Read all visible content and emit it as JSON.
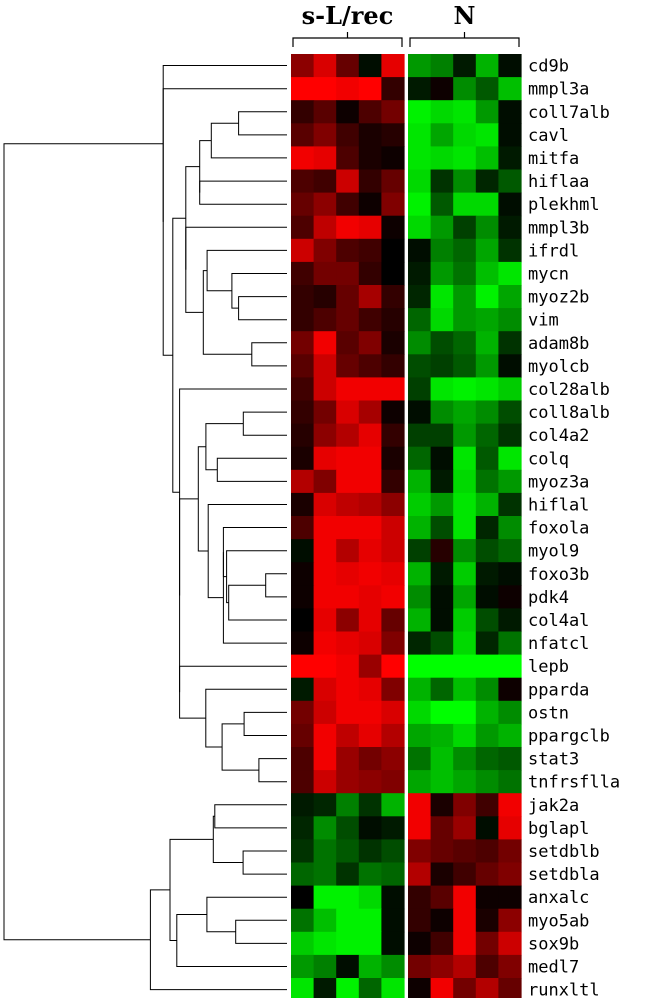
{
  "chart_data": {
    "type": "heatmap",
    "title": "",
    "groups": [
      {
        "label": "s-L/rec",
        "columns": 5
      },
      {
        "label": "N",
        "columns": 5
      }
    ],
    "rows": [
      "cd9b",
      "mmpl3a",
      "col17a1b",
      "cav1",
      "mitfa",
      "hif1aa",
      "plekhm1",
      "mmpl3b",
      "ifrd1",
      "mycn",
      "myoz2b",
      "vim",
      "adam8b",
      "myo1cb",
      "col28a1b",
      "col18a1b",
      "col4a2",
      "c1q",
      "myoz3a",
      "hif1a1",
      "foxo1a",
      "myo19",
      "foxo3b",
      "pdk4",
      "col4a1",
      "nfatc1",
      "lepb",
      "pparda",
      "ostn",
      "ppargc1b",
      "stat3",
      "tnfrsf11a",
      "jak2a",
      "bglap1",
      "setdb1b",
      "setdb1a",
      "anxa1c",
      "myo5ab",
      "sox9b",
      "med17",
      "runx1t1"
    ],
    "row_labels_display": [
      "cd9b",
      "mmpl3a",
      "coll7alb",
      "cavl",
      "mitfa",
      "hiflaa",
      "plekhml",
      "mmpl3b",
      "ifrdl",
      "mycn",
      "myoz2b",
      "vim",
      "adam8b",
      "myolcb",
      "col28alb",
      "coll8alb",
      "col4a2",
      "colq",
      "myoz3a",
      "hiflal",
      "foxola",
      "myol9",
      "foxo3b",
      "pdk4",
      "col4al",
      "nfatcl",
      "lepb",
      "pparda",
      "ostn",
      "ppargclb",
      "stat3",
      "tnfrsflla",
      "jak2a",
      "bglapl",
      "setdblb",
      "setdbla",
      "anxalc",
      "myo5ab",
      "sox9b",
      "medl7",
      "runxltl"
    ],
    "values": [
      [
        0.55,
        0.85,
        0.4,
        -0.05,
        0.9,
        -0.6,
        -0.5,
        -0.1,
        -0.7,
        -0.05
      ],
      [
        1.0,
        1.0,
        0.95,
        1.0,
        0.2,
        -0.1,
        0.05,
        -0.55,
        -0.35,
        -0.75
      ],
      [
        0.2,
        0.35,
        0.05,
        0.3,
        0.45,
        -0.95,
        -0.85,
        -0.9,
        -0.6,
        -0.05
      ],
      [
        0.35,
        0.5,
        0.25,
        0.1,
        0.15,
        -0.9,
        -0.65,
        -0.85,
        -0.9,
        -0.05
      ],
      [
        0.95,
        0.9,
        0.3,
        0.1,
        0.05,
        -0.9,
        -0.85,
        -0.9,
        -0.75,
        -0.1
      ],
      [
        0.3,
        0.25,
        0.8,
        0.2,
        0.4,
        -0.85,
        -0.2,
        -0.55,
        -0.15,
        -0.35
      ],
      [
        0.4,
        0.55,
        0.25,
        0.05,
        0.5,
        -0.95,
        -0.35,
        -0.85,
        -0.85,
        -0.05
      ],
      [
        0.3,
        0.75,
        0.95,
        0.9,
        0.05,
        -0.85,
        -0.6,
        -0.25,
        -0.55,
        -0.1
      ],
      [
        0.8,
        0.5,
        0.3,
        0.25,
        0.0,
        -0.05,
        -0.5,
        -0.4,
        -0.65,
        -0.2
      ],
      [
        0.25,
        0.45,
        0.45,
        0.2,
        0.0,
        -0.1,
        -0.6,
        -0.45,
        -0.75,
        -0.9
      ],
      [
        0.2,
        0.15,
        0.4,
        0.65,
        0.2,
        -0.15,
        -0.9,
        -0.6,
        -0.95,
        -0.65
      ],
      [
        0.2,
        0.3,
        0.4,
        0.25,
        0.15,
        -0.4,
        -0.85,
        -0.6,
        -0.65,
        -0.55
      ],
      [
        0.45,
        0.95,
        0.35,
        0.5,
        0.1,
        -0.55,
        -0.3,
        -0.4,
        -0.7,
        -0.2
      ],
      [
        0.35,
        0.8,
        0.4,
        0.3,
        0.2,
        -0.3,
        -0.25,
        -0.35,
        -0.6,
        -0.05
      ],
      [
        0.25,
        0.8,
        0.95,
        0.95,
        0.95,
        -0.25,
        -0.9,
        -0.95,
        -0.9,
        -0.8
      ],
      [
        0.2,
        0.45,
        0.85,
        0.65,
        0.05,
        -0.05,
        -0.55,
        -0.65,
        -0.55,
        -0.3
      ],
      [
        0.15,
        0.55,
        0.7,
        0.9,
        0.2,
        -0.25,
        -0.25,
        -0.6,
        -0.4,
        -0.2
      ],
      [
        0.1,
        0.9,
        0.95,
        0.95,
        0.1,
        -0.4,
        -0.05,
        -0.9,
        -0.35,
        -0.9
      ],
      [
        0.7,
        0.5,
        0.95,
        0.95,
        0.2,
        -0.7,
        -0.1,
        -0.85,
        -0.45,
        -0.6
      ],
      [
        0.1,
        0.85,
        0.75,
        0.7,
        0.55,
        -0.8,
        -0.6,
        -0.9,
        -0.7,
        -0.2
      ],
      [
        0.3,
        0.95,
        0.95,
        0.95,
        0.8,
        -0.7,
        -0.3,
        -0.9,
        -0.15,
        -0.55
      ],
      [
        -0.05,
        0.95,
        0.7,
        0.9,
        0.8,
        -0.25,
        0.15,
        -0.55,
        -0.3,
        -0.4
      ],
      [
        0.05,
        0.95,
        0.9,
        0.95,
        0.9,
        -0.7,
        -0.1,
        -0.8,
        -0.1,
        -0.05
      ],
      [
        0.05,
        0.95,
        0.95,
        0.9,
        0.95,
        -0.55,
        -0.05,
        -0.65,
        -0.05,
        0.05
      ],
      [
        0.0,
        0.9,
        0.55,
        0.9,
        0.4,
        -0.7,
        -0.05,
        -0.8,
        -0.3,
        -0.1
      ],
      [
        0.05,
        0.95,
        0.9,
        0.85,
        0.5,
        -0.15,
        -0.3,
        -0.85,
        -0.15,
        -0.45
      ],
      [
        1.0,
        1.0,
        0.95,
        0.6,
        1.0,
        -1.0,
        -1.0,
        -1.0,
        -1.0,
        -1.0
      ],
      [
        -0.1,
        0.85,
        0.95,
        0.9,
        0.5,
        -0.7,
        -0.4,
        -0.75,
        -0.55,
        0.05
      ],
      [
        0.45,
        0.8,
        0.95,
        0.95,
        0.85,
        -0.85,
        -1.0,
        -1.0,
        -0.7,
        -0.55
      ],
      [
        0.4,
        0.95,
        0.75,
        0.9,
        0.7,
        -0.65,
        -0.7,
        -0.85,
        -0.6,
        -0.7
      ],
      [
        0.3,
        0.95,
        0.6,
        0.45,
        0.55,
        -0.45,
        -0.75,
        -0.55,
        -0.4,
        -0.35
      ],
      [
        0.3,
        0.8,
        0.6,
        0.55,
        0.5,
        -0.65,
        -0.75,
        -0.65,
        -0.55,
        -0.45
      ],
      [
        -0.1,
        -0.15,
        -0.5,
        -0.2,
        -0.7,
        0.95,
        0.1,
        0.5,
        0.25,
        0.95
      ],
      [
        -0.15,
        -0.55,
        -0.3,
        -0.05,
        -0.1,
        0.95,
        0.4,
        0.6,
        -0.05,
        0.9
      ],
      [
        -0.2,
        -0.45,
        -0.35,
        -0.2,
        -0.3,
        0.5,
        0.4,
        0.35,
        0.3,
        0.45
      ],
      [
        -0.4,
        -0.45,
        -0.2,
        -0.45,
        -0.4,
        0.7,
        0.1,
        0.25,
        0.4,
        0.5
      ],
      [
        0.0,
        -0.95,
        -0.95,
        -0.85,
        -0.05,
        0.2,
        0.35,
        0.95,
        0.05,
        0.05
      ],
      [
        -0.45,
        -0.75,
        -0.95,
        -0.95,
        -0.05,
        0.2,
        0.05,
        0.95,
        0.1,
        0.55
      ],
      [
        -0.8,
        -0.9,
        -0.95,
        -0.95,
        -0.05,
        0.05,
        0.25,
        0.95,
        0.45,
        0.8
      ],
      [
        -0.6,
        -0.5,
        -0.05,
        -0.7,
        -0.55,
        0.45,
        0.55,
        0.7,
        0.3,
        0.5
      ],
      [
        -0.9,
        -0.1,
        -0.95,
        -0.4,
        -0.9,
        0.05,
        0.95,
        0.45,
        0.7,
        0.4
      ]
    ],
    "color_scale": {
      "negative": "#00ff00",
      "zero": "#000000",
      "positive": "#ff0000"
    },
    "row_dendrogram": true,
    "legend": "none",
    "grid": false
  }
}
